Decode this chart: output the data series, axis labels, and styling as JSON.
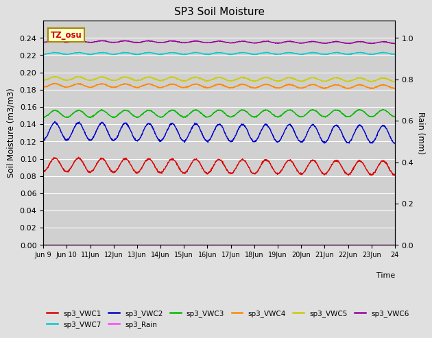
{
  "title": "SP3 Soil Moisture",
  "ylabel_left": "Soil Moisture (m3/m3)",
  "ylabel_right": "Rain (mm)",
  "ylim_left": [
    0.0,
    0.26
  ],
  "ylim_right": [
    0.0,
    1.0833
  ],
  "background_color": "#e0e0e0",
  "plot_bg_color": "#d0d0d0",
  "series": {
    "sp3_VWC1": {
      "color": "#dd0000",
      "base": 0.093,
      "amp": 0.008,
      "trend": -0.00025,
      "noise": 0.0005
    },
    "sp3_VWC2": {
      "color": "#0000cc",
      "base": 0.132,
      "amp": 0.01,
      "trend": -0.00025,
      "noise": 0.0005
    },
    "sp3_VWC3": {
      "color": "#00bb00",
      "base": 0.152,
      "amp": 0.004,
      "trend": 5e-05,
      "noise": 0.0003
    },
    "sp3_VWC4": {
      "color": "#ff8800",
      "base": 0.185,
      "amp": 0.002,
      "trend": -0.0001,
      "noise": 0.0003
    },
    "sp3_VWC5": {
      "color": "#cccc00",
      "base": 0.193,
      "amp": 0.002,
      "trend": -0.0001,
      "noise": 0.0003
    },
    "sp3_VWC6": {
      "color": "#990099",
      "base": 0.236,
      "amp": 0.001,
      "trend": -0.0001,
      "noise": 0.0002
    },
    "sp3_VWC7": {
      "color": "#00cccc",
      "base": 0.222,
      "amp": 0.001,
      "trend": 0.0,
      "noise": 0.0002
    },
    "sp3_Rain": {
      "color": "#ff44ff",
      "value": 0.0
    }
  },
  "legend_order": [
    "sp3_VWC1",
    "sp3_VWC2",
    "sp3_VWC3",
    "sp3_VWC4",
    "sp3_VWC5",
    "sp3_VWC6",
    "sp3_VWC7",
    "sp3_Rain"
  ],
  "annotation_text": "TZ_osu",
  "linewidth": 1.0,
  "num_points": 1440,
  "num_days": 15
}
